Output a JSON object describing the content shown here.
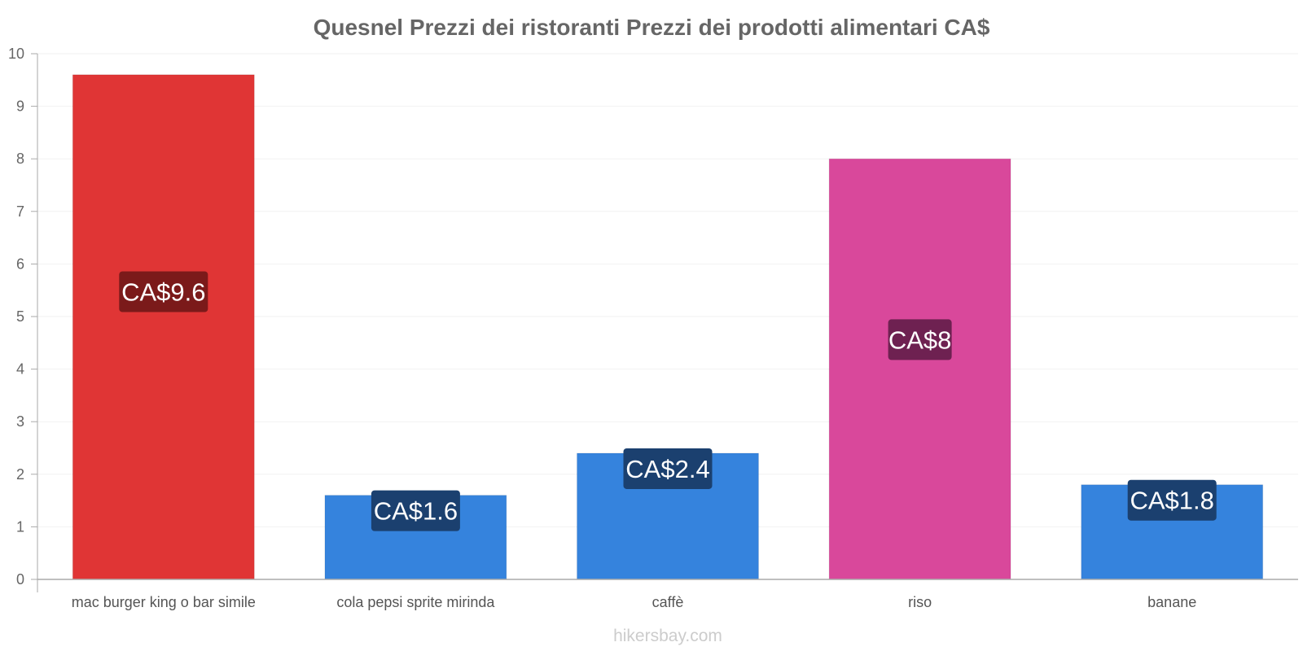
{
  "chart_data": {
    "type": "bar",
    "title": "Quesnel Prezzi dei ristoranti Prezzi dei prodotti alimentari CA$",
    "categories": [
      "mac burger king o bar simile",
      "cola pepsi sprite mirinda",
      "caffè",
      "riso",
      "banane"
    ],
    "values": [
      9.6,
      1.6,
      2.4,
      8,
      1.8
    ],
    "data_labels": [
      "CA$9.6",
      "CA$1.6",
      "CA$2.4",
      "CA$8",
      "CA$1.8"
    ],
    "bar_colors": [
      "#e03535",
      "#3583dd",
      "#3583dd",
      "#d9489b",
      "#3583dd"
    ],
    "label_bg_colors": [
      "#7b1a1a",
      "#1b406f",
      "#1b406f",
      "#6e2151",
      "#1b406f"
    ],
    "ylim": [
      0,
      10
    ],
    "yticks": [
      0,
      1,
      2,
      3,
      4,
      5,
      6,
      7,
      8,
      9,
      10
    ],
    "xlabel": "",
    "ylabel": "",
    "grid": true
  },
  "watermark": "hikersbay.com"
}
